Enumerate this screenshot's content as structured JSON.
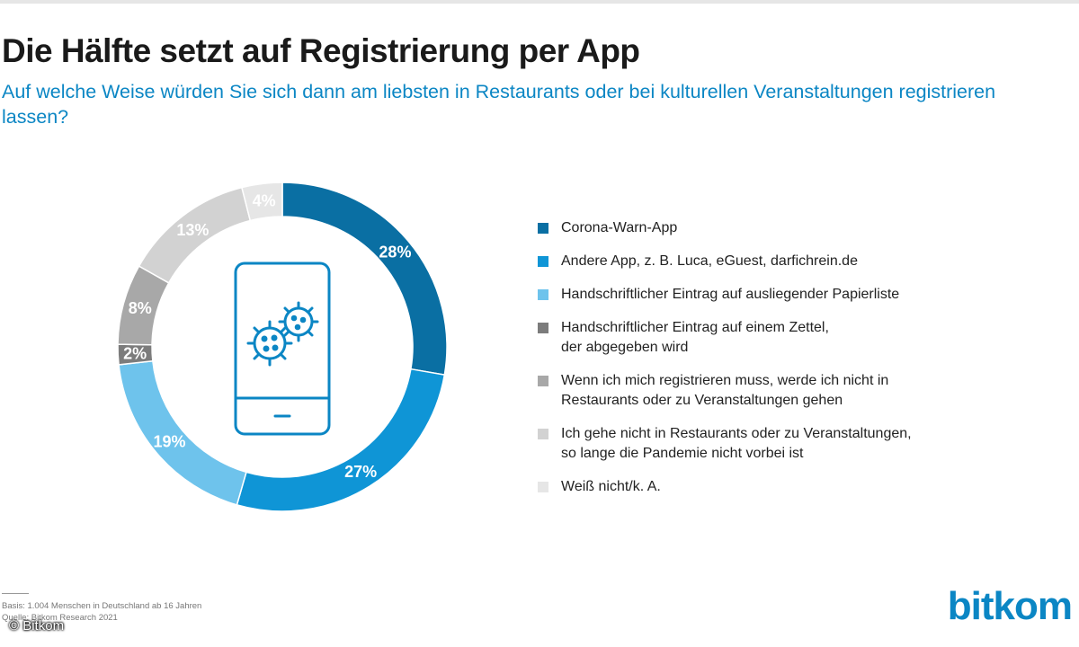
{
  "header": {
    "title": "Die Hälfte setzt auf Registrierung per App",
    "subtitle": "Auf welche Weise würden Sie sich dann am liebsten in Restaurants oder bei kulturellen Veranstaltungen registrieren lassen?"
  },
  "chart_data": {
    "type": "pie",
    "donut": true,
    "title": "Die Hälfte setzt auf Registrierung per App",
    "subtitle": "Auf welche Weise würden Sie sich dann am liebsten in Restaurants oder bei kulturellen Veranstaltungen registrieren lassen?",
    "legend_position": "right",
    "slices": [
      {
        "label": "Corona-Warn-App",
        "value": 28,
        "display": "28%",
        "color": "#0a6fa3"
      },
      {
        "label": "Andere App, z. B. Luca, eGuest, darfichrein.de",
        "value": 27,
        "display": "27%",
        "color": "#0f95d6"
      },
      {
        "label": "Handschriftlicher Eintrag auf ausliegender Papierliste",
        "value": 19,
        "display": "19%",
        "color": "#6ec3ec"
      },
      {
        "label": "Handschriftlicher Eintrag auf einem Zettel, der abgegeben wird",
        "value": 2,
        "display": "2%",
        "color": "#7c7c7c"
      },
      {
        "label": "Wenn ich mich registrieren muss, werde ich nicht in Restaurants oder zu Veranstaltungen gehen",
        "value": 8,
        "display": "8%",
        "color": "#a8a8a8"
      },
      {
        "label": "Ich gehe nicht in Restaurants oder zu Veranstaltungen, so lange die Pandemie nicht vorbei ist",
        "value": 13,
        "display": "13%",
        "color": "#d2d2d2"
      },
      {
        "label": "Weiß nicht/k. A.",
        "value": 4,
        "display": "4%",
        "color": "#e6e6e6"
      }
    ]
  },
  "legend": [
    {
      "line1": "Corona-Warn-App",
      "line2": "",
      "color": "#0a6fa3"
    },
    {
      "line1": "Andere App, z. B. Luca, eGuest, darfichrein.de",
      "line2": "",
      "color": "#0f95d6"
    },
    {
      "line1": "Handschriftlicher Eintrag auf ausliegender Papierliste",
      "line2": "",
      "color": "#6ec3ec"
    },
    {
      "line1": "Handschriftlicher Eintrag auf einem Zettel,",
      "line2": "der abgegeben wird",
      "color": "#7c7c7c"
    },
    {
      "line1": "Wenn ich mich registrieren muss, werde ich nicht in",
      "line2": "Restaurants oder zu Veranstaltungen gehen",
      "color": "#a8a8a8"
    },
    {
      "line1": "Ich gehe nicht in Restaurants oder zu Veranstaltungen,",
      "line2": "so lange die Pandemie nicht vorbei ist",
      "color": "#d2d2d2"
    },
    {
      "line1": "Weiß nicht/k. A.",
      "line2": "",
      "color": "#e6e6e6"
    }
  ],
  "center_icon": "smartphone-with-virus-icon",
  "footnote": {
    "line1": "Basis: 1.004 Menschen in Deutschland ab 16 Jahren",
    "line2": "Quelle: Bitkom Research 2021"
  },
  "copyright": "© Bitkom",
  "logo": "bitkom",
  "colors": {
    "accent": "#0b86c4"
  }
}
